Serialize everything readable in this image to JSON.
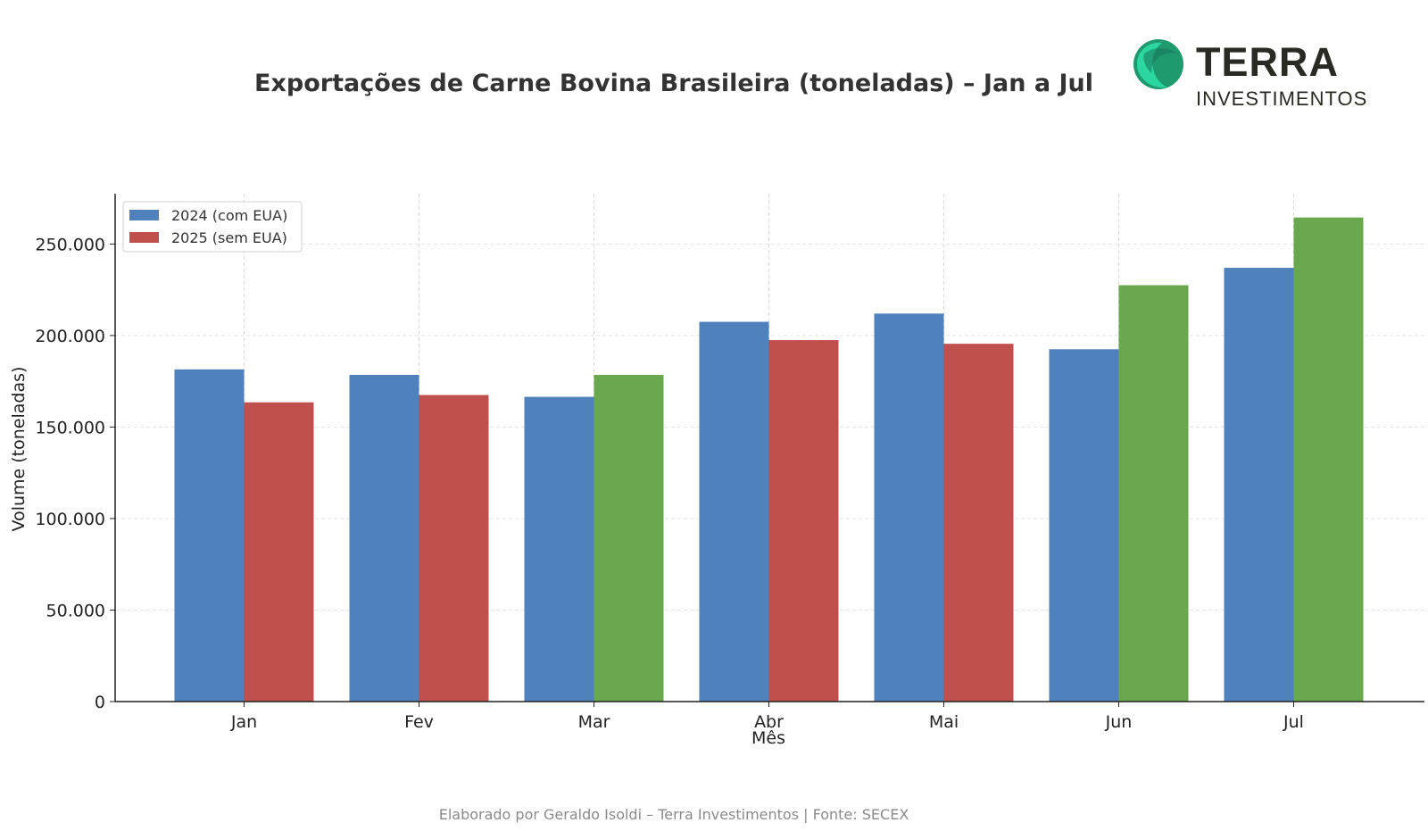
{
  "header": {
    "title": "Exportações de Carne Bovina Brasileira (toneladas) – Jan a Jul"
  },
  "logo": {
    "word": "TERRA",
    "sub": "INVESTIMENTOS",
    "colors": [
      "#2bd6a0",
      "#1f9a6f",
      "#16745a"
    ]
  },
  "footer": {
    "credit": "Elaborado por Geraldo Isoldi – Terra Investimentos | Fonte: SECEX"
  },
  "chart_data": {
    "type": "bar",
    "title": "Exportações de Carne Bovina Brasileira (toneladas) – Jan a Jul",
    "xlabel": "Mês",
    "ylabel": "Volume (toneladas)",
    "categories": [
      "Jan",
      "Fev",
      "Mar",
      "Abr",
      "Mai",
      "Jun",
      "Jul"
    ],
    "ylim": [
      0,
      277500
    ],
    "yticks": [
      0,
      50000,
      100000,
      150000,
      200000,
      250000
    ],
    "ytick_labels": [
      "0",
      "50.000",
      "100.000",
      "150.000",
      "200.000",
      "250.000"
    ],
    "grid": true,
    "legend_position": "top-left",
    "series": [
      {
        "name": "2024 (com EUA)",
        "color": "#4f81bd",
        "values": [
          181500,
          178500,
          166500,
          207500,
          212000,
          192500,
          237000
        ]
      },
      {
        "name": "2025 (sem EUA)",
        "color": "#c0504d",
        "values": [
          163500,
          167500,
          178500,
          197500,
          195500,
          227500,
          264500
        ],
        "bar_colors": [
          "#c0504d",
          "#c0504d",
          "#6aa84f",
          "#c0504d",
          "#c0504d",
          "#6aa84f",
          "#6aa84f"
        ]
      }
    ]
  }
}
